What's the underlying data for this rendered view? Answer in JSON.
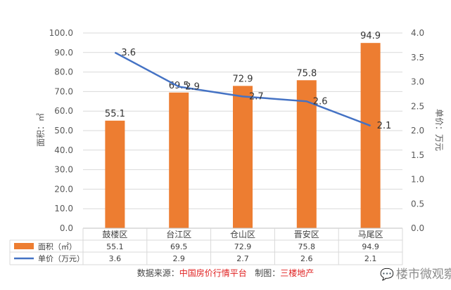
{
  "chart_data": {
    "type": "bar",
    "categories": [
      "鼓楼区",
      "台江区",
      "仓山区",
      "晋安区",
      "马尾区"
    ],
    "series": [
      {
        "name": "面积（㎡）",
        "type": "bar",
        "axis": "left",
        "values": [
          55.1,
          69.5,
          72.9,
          75.8,
          94.9
        ],
        "color": "#ed7d31"
      },
      {
        "name": "单价（万元）",
        "type": "line",
        "axis": "right",
        "values": [
          3.6,
          2.9,
          2.7,
          2.6,
          2.1
        ],
        "color": "#4472c4"
      }
    ],
    "ylabel": "面积：㎡",
    "y2label": "单价：万元",
    "ylim": [
      0,
      100
    ],
    "y2lim": [
      0,
      4
    ],
    "yticks": [
      "0.0",
      "10.0",
      "20.0",
      "30.0",
      "40.0",
      "50.0",
      "60.0",
      "70.0",
      "80.0",
      "90.0",
      "100.0"
    ],
    "y2ticks": [
      "0.0",
      "0.5",
      "1.0",
      "1.5",
      "2.0",
      "2.5",
      "3.0",
      "3.5",
      "4.0"
    ],
    "bar_labels": [
      "55.1",
      "69.5",
      "72.9",
      "75.8",
      "94.9"
    ],
    "line_labels": [
      "3.6",
      "2.9",
      "2.7",
      "2.6",
      "2.1"
    ],
    "table": {
      "bar_row": [
        "55.1",
        "69.5",
        "72.9",
        "75.8",
        "94.9"
      ],
      "line_row": [
        "3.6",
        "2.9",
        "2.7",
        "2.6",
        "2.1"
      ]
    },
    "grid": true,
    "legend": "data-table"
  },
  "footer": {
    "source_label": "数据来源：",
    "source_value": "中国房价行情平台",
    "credit_label": "制图：",
    "credit_value": "三楼地产"
  },
  "watermark": {
    "icon": "wechat-icon",
    "text": "楼市微观察"
  }
}
